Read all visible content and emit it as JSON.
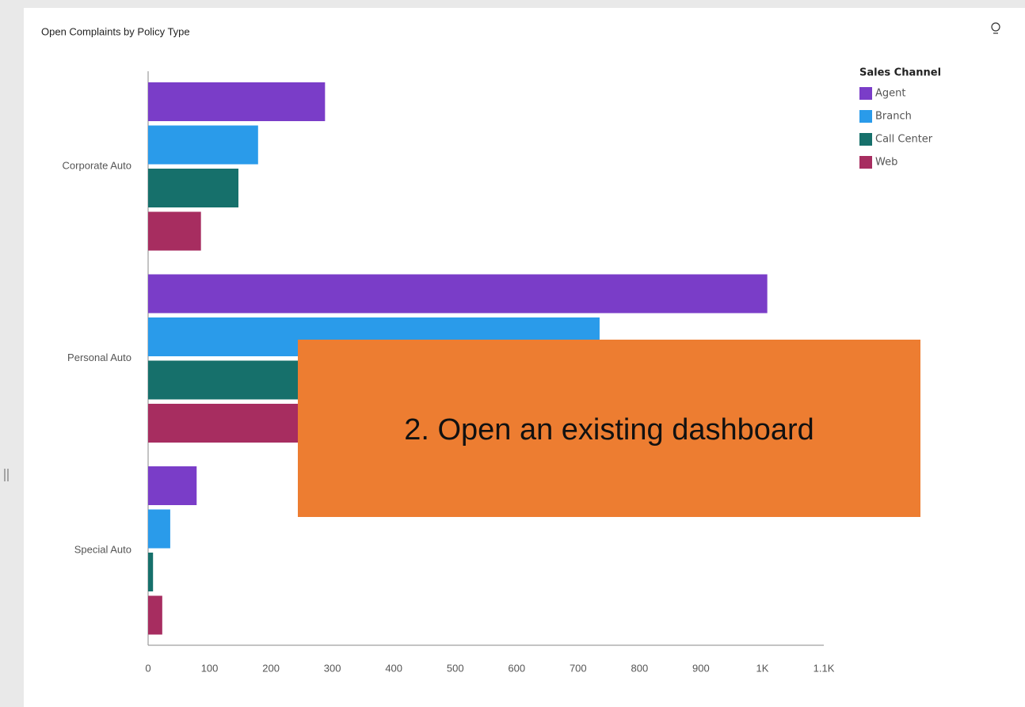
{
  "chart_data": {
    "type": "hbar",
    "title": "Open Complaints by Policy Type",
    "categories": [
      "Corporate Auto",
      "Personal Auto",
      "Special Auto"
    ],
    "legend_title": "Sales Channel",
    "series": [
      {
        "name": "Agent",
        "color": "#7a3dc8",
        "values": [
          288,
          1008,
          79
        ]
      },
      {
        "name": "Branch",
        "color": "#2a9bea",
        "values": [
          179,
          735,
          36
        ]
      },
      {
        "name": "Call Center",
        "color": "#16706b",
        "values": [
          147,
          560,
          8
        ]
      },
      {
        "name": "Web",
        "color": "#a72d60",
        "values": [
          86,
          470,
          23
        ]
      }
    ],
    "xlim": [
      0,
      1100
    ],
    "xticks": [
      0,
      100,
      200,
      300,
      400,
      500,
      600,
      700,
      800,
      900,
      {
        "value": 1000,
        "label": "1K"
      },
      {
        "value": 1100,
        "label": "1.1K"
      }
    ],
    "annotation": "2. Open an existing dashboard"
  }
}
